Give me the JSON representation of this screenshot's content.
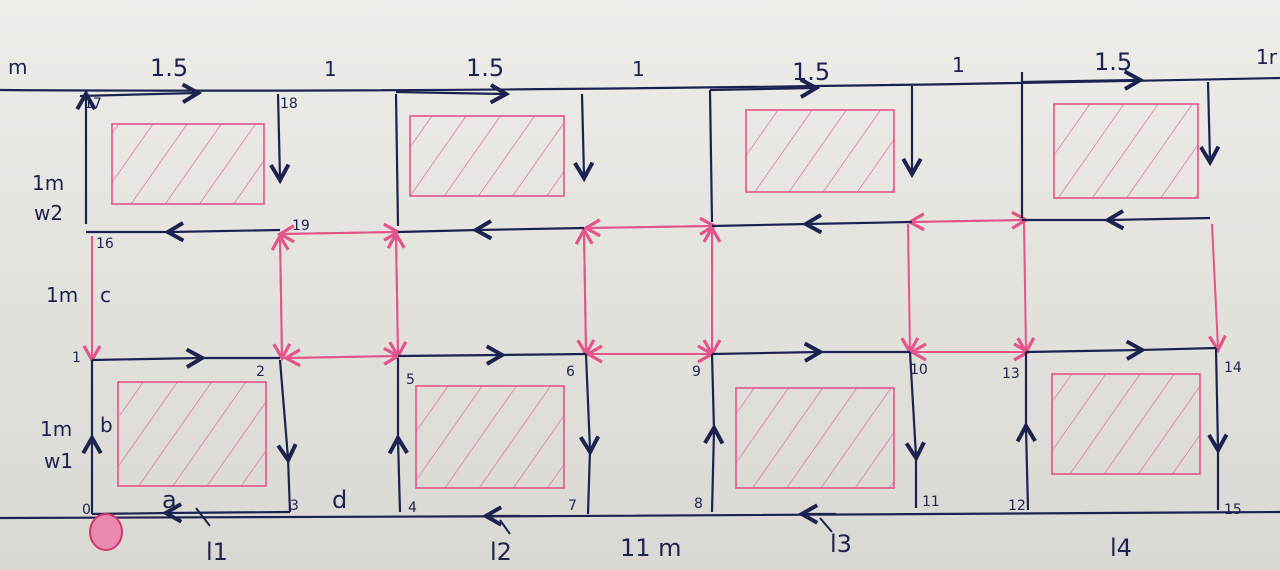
{
  "colors": {
    "ink": "#1d2350",
    "pink": "#e2548a",
    "hatch": "#e06b98",
    "paper": "#eeede9"
  },
  "top_edge": {
    "left_label": "m",
    "right_label": "1r",
    "segment_labels": [
      "1.5",
      "1",
      "1.5",
      "1",
      "1.5",
      "1",
      "1.5"
    ]
  },
  "bottom_edge": {
    "length_label": "11 m",
    "lane_labels": [
      "l1",
      "l2",
      "l3",
      "l4"
    ]
  },
  "left_side": {
    "upper_width": "1m",
    "upper_name": "w2",
    "mid_width": "1m",
    "mid_name": "c",
    "lower_width": "1m",
    "lower_name": "b",
    "lower_w": "w1"
  },
  "segment_names": {
    "bottom_a": "a",
    "bottom_d": "d"
  },
  "nodes": [
    "0",
    "1",
    "2",
    "3",
    "4",
    "5",
    "6",
    "7",
    "8",
    "9",
    "10",
    "11",
    "12",
    "13",
    "14",
    "15",
    "16",
    "17",
    "18",
    "19"
  ],
  "start_marker": "start-node-circle"
}
